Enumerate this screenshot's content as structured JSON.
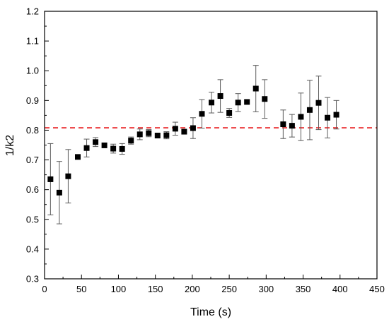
{
  "chart_data": {
    "type": "scatter",
    "title": "",
    "xlabel": "Time (s)",
    "ylabel": "1/k2",
    "xlim": [
      0,
      450
    ],
    "ylim": [
      0.3,
      1.2
    ],
    "x_ticks": [
      0,
      50,
      100,
      150,
      200,
      250,
      300,
      350,
      400,
      450
    ],
    "y_ticks": [
      0.3,
      0.4,
      0.5,
      0.6,
      0.7,
      0.8,
      0.9,
      1.0,
      1.1,
      1.2
    ],
    "x_tick_labels": [
      "0",
      "50",
      "100",
      "150",
      "200",
      "250",
      "300",
      "350",
      "400",
      "450"
    ],
    "y_tick_labels": [
      "0.3",
      "0.4",
      "0.5",
      "0.6",
      "0.7",
      "0.8",
      "0.9",
      "1.0",
      "1.1",
      "1.2"
    ],
    "grid": false,
    "legend": "none",
    "reference_line": {
      "y": 0.808,
      "color": "#e8191b",
      "style": "dashed"
    },
    "marker_color": "#000000",
    "errorbar_color": "#5a5a5a",
    "points": [
      {
        "x": 8,
        "y": 0.635,
        "err": 0.12
      },
      {
        "x": 20,
        "y": 0.59,
        "err": 0.105
      },
      {
        "x": 32,
        "y": 0.645,
        "err": 0.09
      },
      {
        "x": 45,
        "y": 0.71,
        "err": 0.0
      },
      {
        "x": 57,
        "y": 0.74,
        "err": 0.03
      },
      {
        "x": 69,
        "y": 0.76,
        "err": 0.015
      },
      {
        "x": 81,
        "y": 0.749,
        "err": 0.0
      },
      {
        "x": 93,
        "y": 0.738,
        "err": 0.015
      },
      {
        "x": 105,
        "y": 0.737,
        "err": 0.018
      },
      {
        "x": 117,
        "y": 0.765,
        "err": 0.012
      },
      {
        "x": 129,
        "y": 0.786,
        "err": 0.018
      },
      {
        "x": 141,
        "y": 0.79,
        "err": 0.012
      },
      {
        "x": 153,
        "y": 0.782,
        "err": 0.0
      },
      {
        "x": 165,
        "y": 0.783,
        "err": 0.012
      },
      {
        "x": 177,
        "y": 0.805,
        "err": 0.022
      },
      {
        "x": 189,
        "y": 0.795,
        "err": 0.0
      },
      {
        "x": 201,
        "y": 0.807,
        "err": 0.035
      },
      {
        "x": 213,
        "y": 0.855,
        "err": 0.048
      },
      {
        "x": 226,
        "y": 0.893,
        "err": 0.035
      },
      {
        "x": 238,
        "y": 0.915,
        "err": 0.055
      },
      {
        "x": 250,
        "y": 0.858,
        "err": 0.015
      },
      {
        "x": 262,
        "y": 0.893,
        "err": 0.03
      },
      {
        "x": 274,
        "y": 0.895,
        "err": 0.0
      },
      {
        "x": 286,
        "y": 0.94,
        "err": 0.078
      },
      {
        "x": 298,
        "y": 0.905,
        "err": 0.065
      },
      {
        "x": 323,
        "y": 0.82,
        "err": 0.048
      },
      {
        "x": 335,
        "y": 0.815,
        "err": 0.038
      },
      {
        "x": 347,
        "y": 0.845,
        "err": 0.08
      },
      {
        "x": 359,
        "y": 0.868,
        "err": 0.1
      },
      {
        "x": 371,
        "y": 0.892,
        "err": 0.09
      },
      {
        "x": 383,
        "y": 0.842,
        "err": 0.068
      },
      {
        "x": 395,
        "y": 0.852,
        "err": 0.048
      }
    ]
  }
}
